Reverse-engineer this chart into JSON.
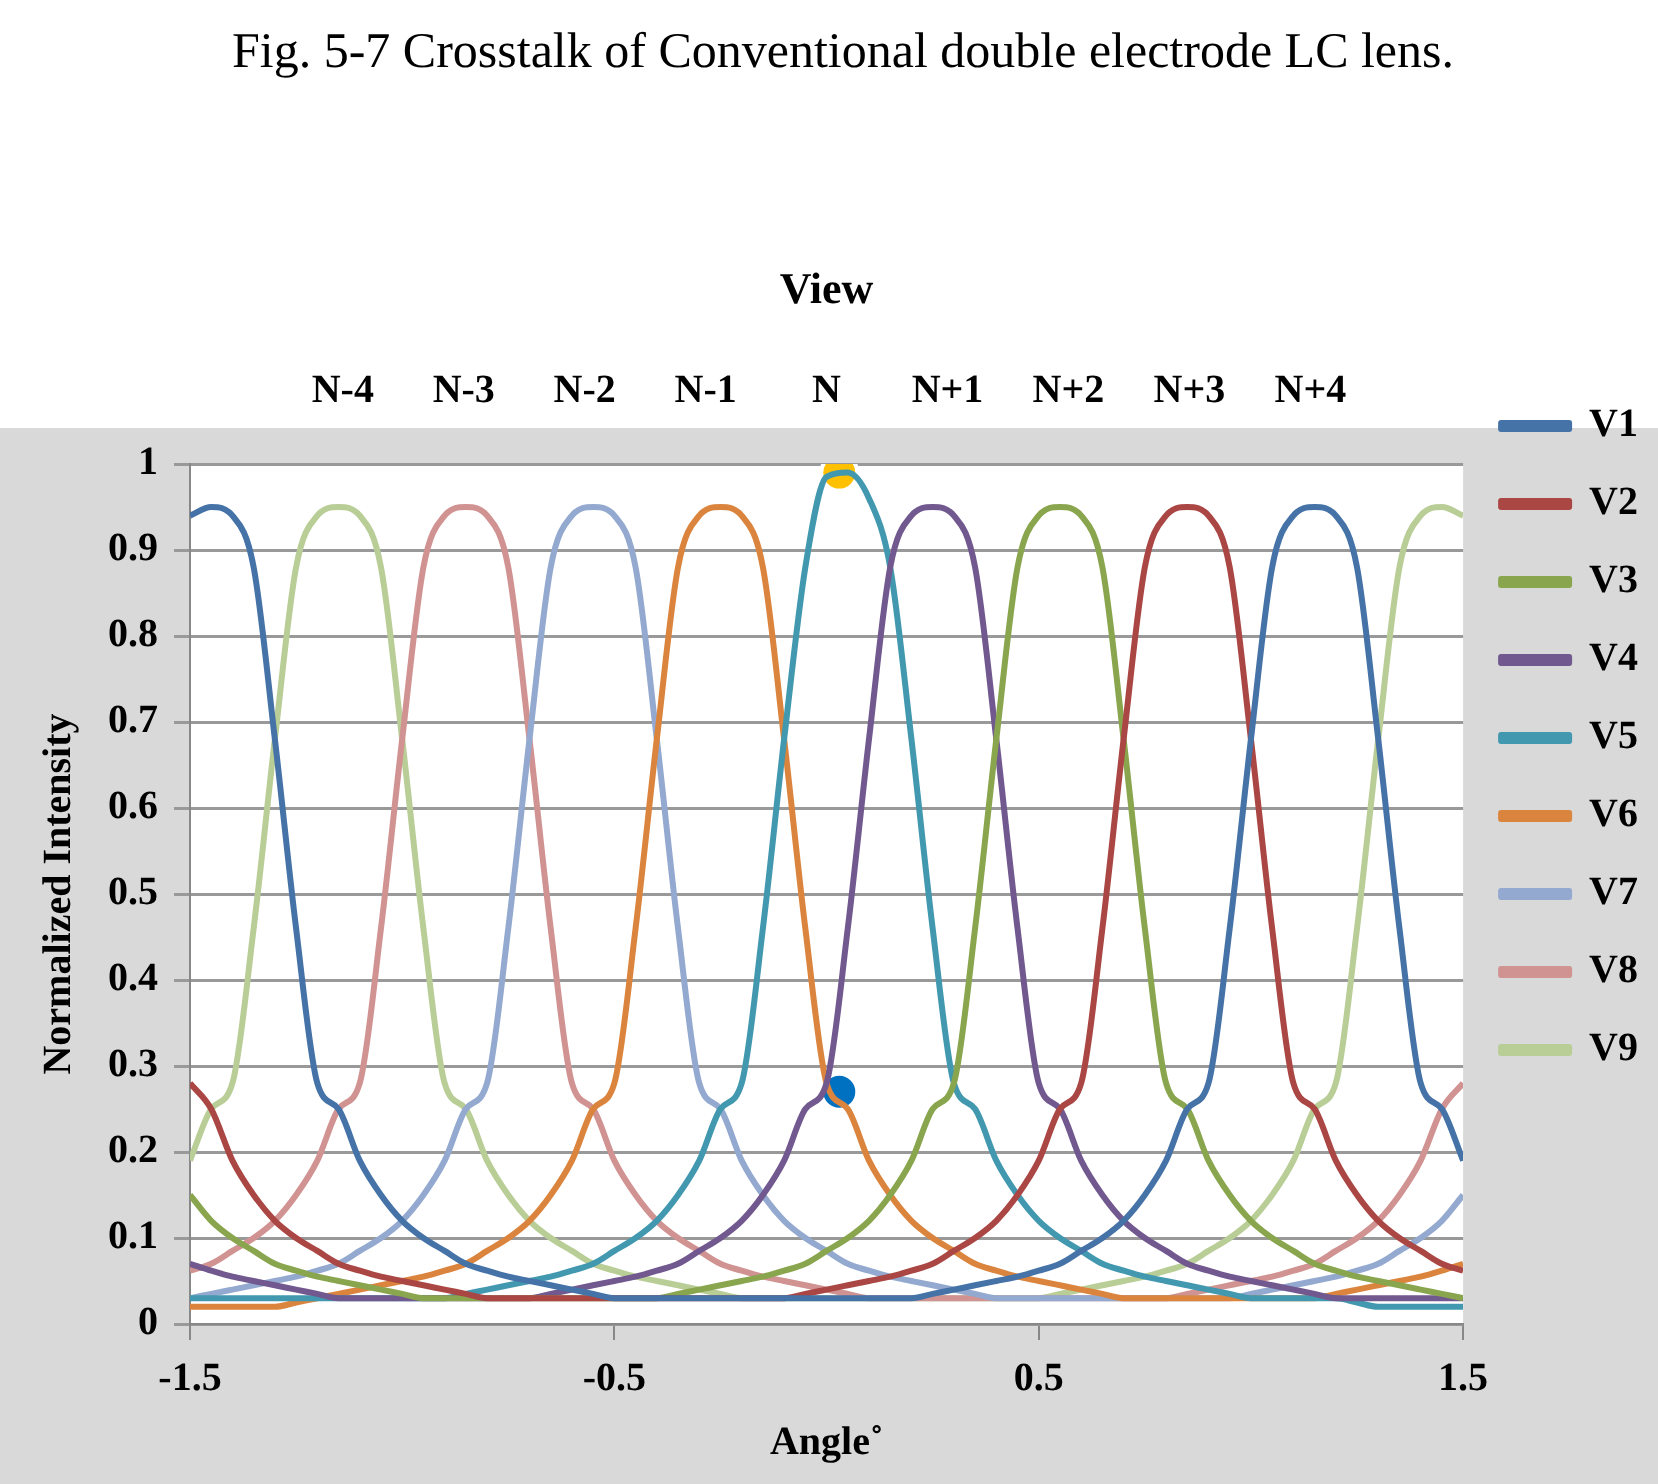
{
  "chart_data": {
    "type": "line",
    "title": "Fig. 5-7 Crosstalk of Conventional double electrode LC lens.",
    "xlabel": "Angle˚",
    "ylabel": "Normalized Intensity",
    "annotations": [
      "View",
      "N-4",
      "N-3",
      "N-2",
      "N-1",
      "N",
      "N+1",
      "N+2",
      "N+3",
      "N+4"
    ],
    "x": [
      -1.5,
      -1.45,
      -1.4,
      -1.35,
      -1.3,
      -1.25,
      -1.2,
      -1.15,
      -1.1,
      -1.05,
      -1,
      -0.95,
      -0.9,
      -0.85,
      -0.8,
      -0.75,
      -0.7,
      -0.65,
      -0.6,
      -0.55,
      -0.5,
      -0.45,
      -0.4,
      -0.35,
      -0.3,
      -0.25,
      -0.2,
      -0.15,
      -0.1,
      -0.05,
      0,
      0.05,
      0.1,
      0.15,
      0.2,
      0.25,
      0.3,
      0.35,
      0.4,
      0.45,
      0.5,
      0.55,
      0.6,
      0.65,
      0.7,
      0.75,
      0.8,
      0.85,
      0.9,
      0.95,
      1,
      1.05,
      1.1,
      1.15,
      1.2,
      1.25,
      1.3,
      1.35,
      1.4,
      1.45,
      1.5
    ],
    "xlim": [
      -1.5,
      1.5
    ],
    "xticks": [
      -1.5,
      -0.5,
      0.5,
      1.5
    ],
    "ylim": [
      0,
      1
    ],
    "yticks": [
      0,
      0.1,
      0.2,
      0.3,
      0.4,
      0.5,
      0.6,
      0.7,
      0.8,
      0.9,
      1
    ],
    "grid": "y",
    "legend": "right",
    "line_style": "solid",
    "marker": "none",
    "series": [
      {
        "name": "V1",
        "color": "#4572a7",
        "values": [
          0.94,
          0.95,
          0.94,
          0.88,
          0.68,
          0.46,
          0.28,
          0.25,
          0.19,
          0.15,
          0.12,
          0.1,
          0.085,
          0.07,
          0.062,
          0.055,
          0.05,
          0.045,
          0.04,
          0.035,
          0.03,
          0.03,
          0.03,
          0.03,
          0.03,
          0.03,
          0.03,
          0.03,
          0.03,
          0.03,
          0.03,
          0.03,
          0.03,
          0.03,
          0.03,
          0.035,
          0.04,
          0.045,
          0.05,
          0.055,
          0.062,
          0.07,
          0.085,
          0.1,
          0.12,
          0.15,
          0.19,
          0.25,
          0.28,
          0.46,
          0.68,
          0.88,
          0.94,
          0.95,
          0.94,
          0.88,
          0.68,
          0.46,
          0.28,
          0.25,
          0.19
        ]
      },
      {
        "name": "V2",
        "color": "#aa4643",
        "values": [
          0.28,
          0.25,
          0.19,
          0.15,
          0.12,
          0.1,
          0.085,
          0.07,
          0.062,
          0.055,
          0.05,
          0.045,
          0.04,
          0.035,
          0.03,
          0.03,
          0.03,
          0.03,
          0.03,
          0.03,
          0.03,
          0.03,
          0.03,
          0.03,
          0.03,
          0.03,
          0.03,
          0.03,
          0.03,
          0.035,
          0.04,
          0.045,
          0.05,
          0.055,
          0.062,
          0.07,
          0.085,
          0.1,
          0.12,
          0.15,
          0.19,
          0.25,
          0.28,
          0.46,
          0.68,
          0.88,
          0.94,
          0.95,
          0.94,
          0.88,
          0.68,
          0.46,
          0.28,
          0.25,
          0.19,
          0.15,
          0.12,
          0.1,
          0.085,
          0.07,
          0.062
        ]
      },
      {
        "name": "V3",
        "color": "#89a54e",
        "values": [
          0.15,
          0.12,
          0.1,
          0.085,
          0.07,
          0.062,
          0.055,
          0.05,
          0.045,
          0.04,
          0.035,
          0.03,
          0.03,
          0.03,
          0.03,
          0.03,
          0.03,
          0.03,
          0.03,
          0.03,
          0.03,
          0.03,
          0.03,
          0.035,
          0.04,
          0.045,
          0.05,
          0.055,
          0.062,
          0.07,
          0.085,
          0.1,
          0.12,
          0.15,
          0.19,
          0.25,
          0.28,
          0.46,
          0.68,
          0.88,
          0.94,
          0.95,
          0.94,
          0.88,
          0.68,
          0.46,
          0.28,
          0.25,
          0.19,
          0.15,
          0.12,
          0.1,
          0.085,
          0.07,
          0.062,
          0.055,
          0.05,
          0.045,
          0.04,
          0.035,
          0.03
        ]
      },
      {
        "name": "V4",
        "color": "#71588f",
        "values": [
          0.07,
          0.062,
          0.055,
          0.05,
          0.045,
          0.04,
          0.035,
          0.03,
          0.03,
          0.03,
          0.03,
          0.03,
          0.03,
          0.03,
          0.03,
          0.03,
          0.03,
          0.035,
          0.04,
          0.045,
          0.05,
          0.055,
          0.062,
          0.07,
          0.085,
          0.1,
          0.12,
          0.15,
          0.19,
          0.25,
          0.28,
          0.46,
          0.68,
          0.88,
          0.94,
          0.95,
          0.94,
          0.88,
          0.68,
          0.46,
          0.28,
          0.25,
          0.19,
          0.15,
          0.12,
          0.1,
          0.085,
          0.07,
          0.062,
          0.055,
          0.05,
          0.045,
          0.04,
          0.035,
          0.03,
          0.03,
          0.03,
          0.03,
          0.03,
          0.03,
          0.03
        ]
      },
      {
        "name": "V5",
        "color": "#4198af",
        "values": [
          0.03,
          0.03,
          0.03,
          0.03,
          0.03,
          0.03,
          0.03,
          0.03,
          0.03,
          0.03,
          0.03,
          0.03,
          0.03,
          0.035,
          0.04,
          0.045,
          0.05,
          0.055,
          0.062,
          0.07,
          0.085,
          0.1,
          0.12,
          0.15,
          0.19,
          0.25,
          0.28,
          0.46,
          0.68,
          0.88,
          0.985,
          0.99,
          0.96,
          0.88,
          0.68,
          0.46,
          0.28,
          0.25,
          0.19,
          0.15,
          0.12,
          0.1,
          0.085,
          0.07,
          0.062,
          0.055,
          0.05,
          0.045,
          0.04,
          0.035,
          0.03,
          0.03,
          0.03,
          0.03,
          0.03,
          0.025,
          0.02,
          0.02,
          0.02,
          0.02,
          0.02
        ]
      },
      {
        "name": "V6",
        "color": "#db843d",
        "values": [
          0.02,
          0.02,
          0.02,
          0.02,
          0.02,
          0.025,
          0.03,
          0.035,
          0.04,
          0.045,
          0.05,
          0.055,
          0.062,
          0.07,
          0.085,
          0.1,
          0.12,
          0.15,
          0.19,
          0.25,
          0.28,
          0.46,
          0.68,
          0.88,
          0.94,
          0.95,
          0.94,
          0.88,
          0.68,
          0.46,
          0.28,
          0.25,
          0.19,
          0.15,
          0.12,
          0.1,
          0.085,
          0.07,
          0.062,
          0.055,
          0.05,
          0.045,
          0.04,
          0.035,
          0.03,
          0.03,
          0.03,
          0.03,
          0.03,
          0.03,
          0.03,
          0.03,
          0.03,
          0.03,
          0.035,
          0.04,
          0.045,
          0.05,
          0.055,
          0.062,
          0.07
        ]
      },
      {
        "name": "V7",
        "color": "#93a9cf",
        "values": [
          0.03,
          0.035,
          0.04,
          0.045,
          0.05,
          0.055,
          0.062,
          0.07,
          0.085,
          0.1,
          0.12,
          0.15,
          0.19,
          0.25,
          0.28,
          0.46,
          0.68,
          0.88,
          0.94,
          0.95,
          0.94,
          0.88,
          0.68,
          0.46,
          0.28,
          0.25,
          0.19,
          0.15,
          0.12,
          0.1,
          0.085,
          0.07,
          0.062,
          0.055,
          0.05,
          0.045,
          0.04,
          0.035,
          0.03,
          0.03,
          0.03,
          0.03,
          0.03,
          0.03,
          0.03,
          0.03,
          0.03,
          0.03,
          0.03,
          0.03,
          0.035,
          0.04,
          0.045,
          0.05,
          0.055,
          0.062,
          0.07,
          0.085,
          0.1,
          0.12,
          0.15
        ]
      },
      {
        "name": "V8",
        "color": "#d19392",
        "values": [
          0.062,
          0.07,
          0.085,
          0.1,
          0.12,
          0.15,
          0.19,
          0.25,
          0.28,
          0.46,
          0.68,
          0.88,
          0.94,
          0.95,
          0.94,
          0.88,
          0.68,
          0.46,
          0.28,
          0.25,
          0.19,
          0.15,
          0.12,
          0.1,
          0.085,
          0.07,
          0.062,
          0.055,
          0.05,
          0.045,
          0.04,
          0.035,
          0.03,
          0.03,
          0.03,
          0.03,
          0.03,
          0.03,
          0.03,
          0.03,
          0.03,
          0.03,
          0.03,
          0.03,
          0.03,
          0.03,
          0.03,
          0.035,
          0.04,
          0.045,
          0.05,
          0.055,
          0.062,
          0.07,
          0.085,
          0.1,
          0.12,
          0.15,
          0.19,
          0.25,
          0.28
        ]
      },
      {
        "name": "V9",
        "color": "#b9cd96",
        "values": [
          0.19,
          0.25,
          0.28,
          0.46,
          0.68,
          0.88,
          0.94,
          0.95,
          0.94,
          0.88,
          0.68,
          0.46,
          0.28,
          0.25,
          0.19,
          0.15,
          0.12,
          0.1,
          0.085,
          0.07,
          0.062,
          0.055,
          0.05,
          0.045,
          0.04,
          0.035,
          0.03,
          0.03,
          0.03,
          0.03,
          0.03,
          0.03,
          0.03,
          0.03,
          0.03,
          0.03,
          0.03,
          0.03,
          0.03,
          0.03,
          0.03,
          0.035,
          0.04,
          0.045,
          0.05,
          0.055,
          0.062,
          0.07,
          0.085,
          0.1,
          0.12,
          0.15,
          0.19,
          0.25,
          0.28,
          0.46,
          0.68,
          0.88,
          0.94,
          0.95,
          0.94
        ]
      },
      {
        "type": "scatter",
        "color": "#ffc000",
        "x": [
          0.03
        ],
        "values": [
          0.99
        ],
        "marker": "circle"
      },
      {
        "type": "scatter",
        "color": "#0070c0",
        "x": [
          0.03
        ],
        "values": [
          0.27
        ],
        "marker": "circle"
      }
    ]
  }
}
